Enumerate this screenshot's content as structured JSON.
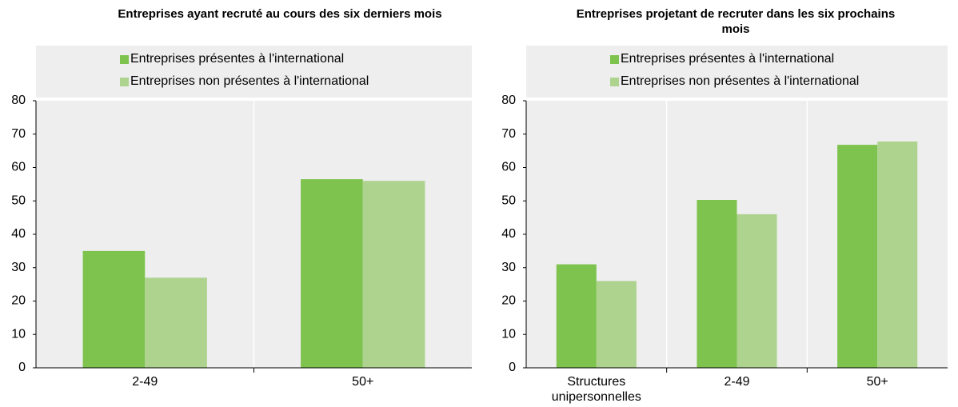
{
  "chart_data": [
    {
      "type": "bar",
      "title": "Entreprises ayant recruté au cours des six derniers mois",
      "categories": [
        "2-49",
        "50+"
      ],
      "series": [
        {
          "name": "Entreprises présentes à l'international",
          "color": "#7dc34d",
          "values": [
            35,
            56.5
          ]
        },
        {
          "name": "Entreprises non présentes à l'international",
          "color": "#aed38f",
          "values": [
            27,
            56
          ]
        }
      ],
      "ylim": [
        0,
        80
      ],
      "yticks": [
        0,
        10,
        20,
        30,
        40,
        50,
        60,
        70,
        80
      ]
    },
    {
      "type": "bar",
      "title": "Entreprises projetant de recruter dans les six prochains mois",
      "categories": [
        "Structures unipersonnelles",
        "2-49",
        "50+"
      ],
      "series": [
        {
          "name": "Entreprises présentes à l'international",
          "color": "#7dc34d",
          "values": [
            31,
            50.3,
            66.8
          ]
        },
        {
          "name": "Entreprises non présentes à l'international",
          "color": "#aed38f",
          "values": [
            26,
            46,
            67.8
          ]
        }
      ],
      "ylim": [
        0,
        80
      ],
      "yticks": [
        0,
        10,
        20,
        30,
        40,
        50,
        60,
        70,
        80
      ]
    }
  ]
}
